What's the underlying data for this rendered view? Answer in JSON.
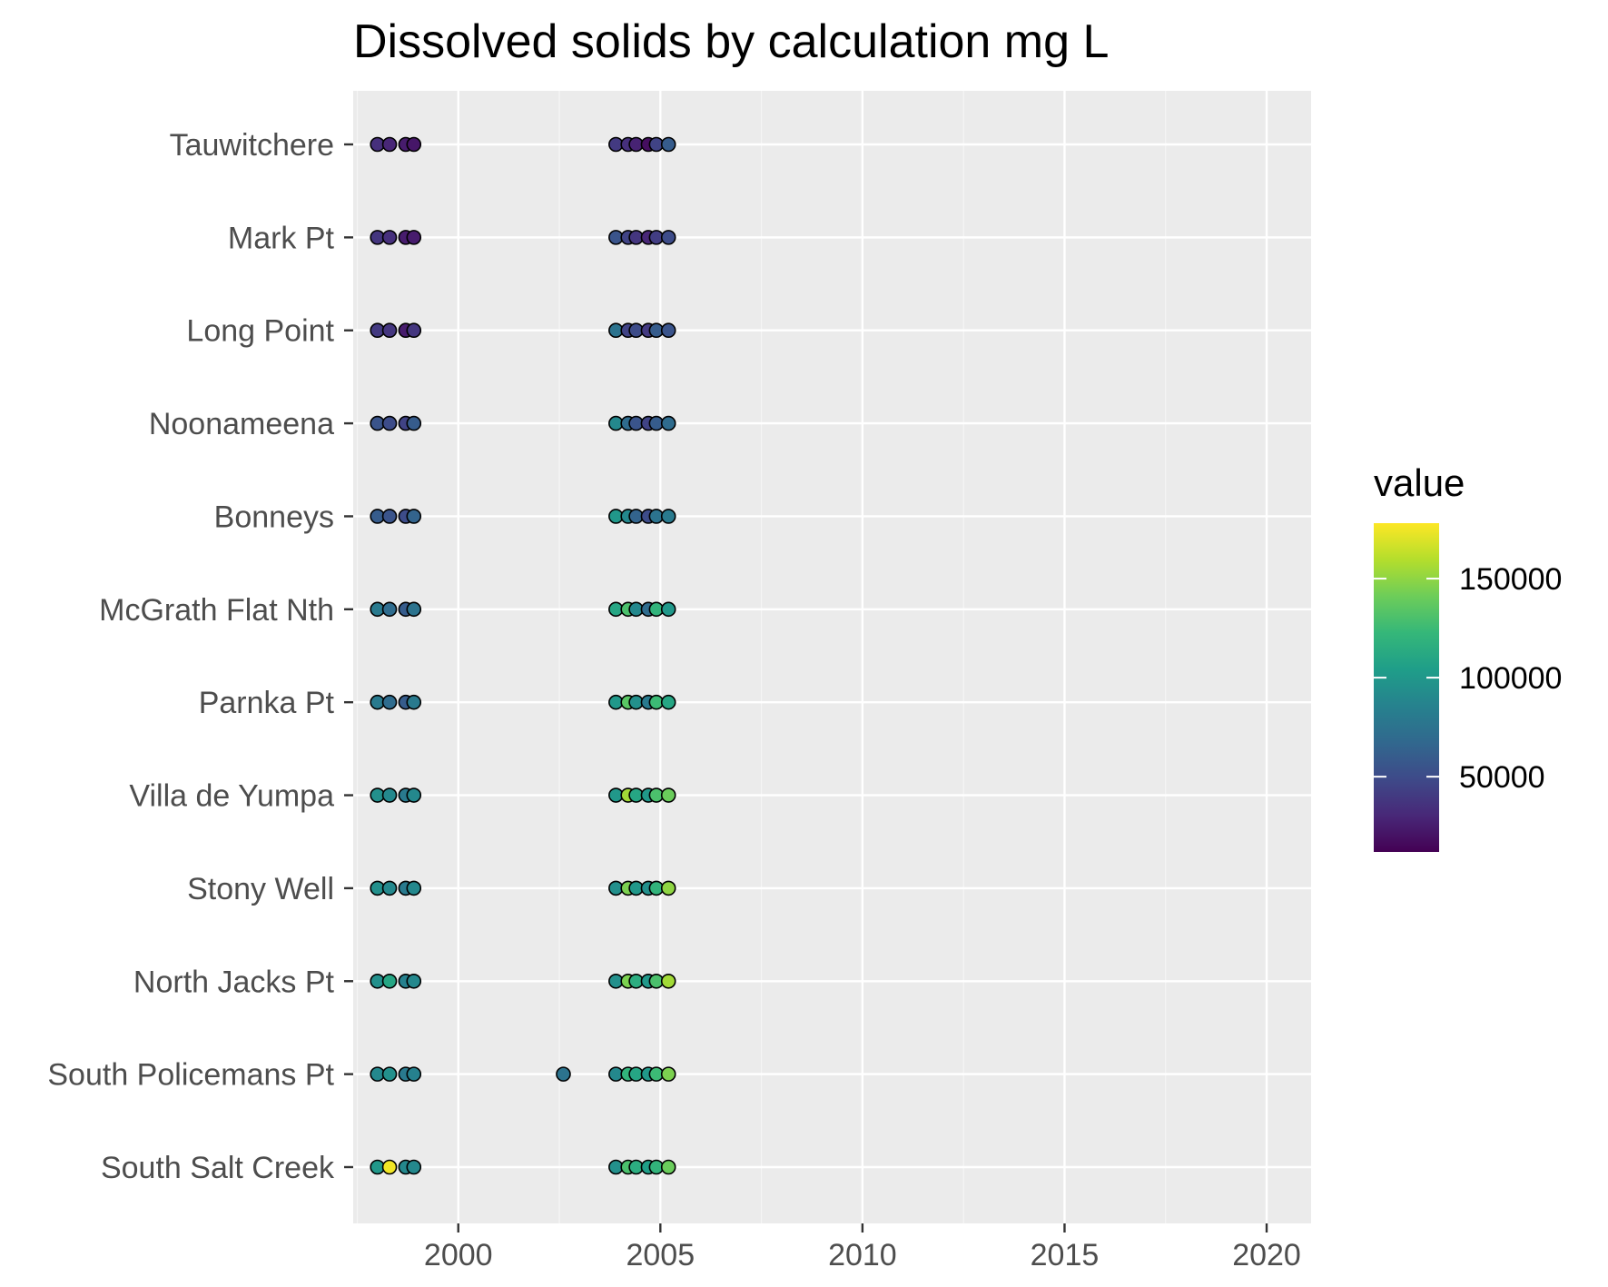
{
  "chart_data": {
    "type": "scatter",
    "title": "Dissolved solids by calculation mg L",
    "xlabel": "",
    "ylabel": "",
    "xlim": [
      1997.4,
      2021.1
    ],
    "x_ticks": [
      2000,
      2005,
      2010,
      2015,
      2020
    ],
    "x_minor": [
      1997.5,
      2002.5,
      2007.5,
      2012.5,
      2017.5
    ],
    "categories": [
      "Tauwitchere",
      "Mark Pt",
      "Long Point",
      "Noonameena",
      "Bonneys",
      "McGrath Flat Nth",
      "Parnka Pt",
      "Villa de Yumpa",
      "Stony Well",
      "North Jacks Pt",
      "South Policemans Pt",
      "South Salt Creek"
    ],
    "grid": true,
    "legend": {
      "title": "value",
      "placement": "right",
      "min": 12000,
      "max": 178000,
      "ticks": [
        50000,
        100000,
        150000
      ],
      "tick_labels": [
        "50000",
        "100000",
        "150000"
      ]
    },
    "colors": {
      "panel_bg": "#ebebeb",
      "grid_major": "#ffffff",
      "grid_minor": "#f5f5f5",
      "point_outline": "#000000",
      "palette": "viridis"
    },
    "series": [
      {
        "site": "Tauwitchere",
        "points": [
          {
            "x": 1998.0,
            "value": 35000
          },
          {
            "x": 1998.3,
            "value": 30000
          },
          {
            "x": 1998.7,
            "value": 25000
          },
          {
            "x": 1998.9,
            "value": 22000
          },
          {
            "x": 2003.9,
            "value": 40000
          },
          {
            "x": 2004.2,
            "value": 35000
          },
          {
            "x": 2004.4,
            "value": 28000
          },
          {
            "x": 2004.7,
            "value": 18000
          },
          {
            "x": 2004.9,
            "value": 45000
          },
          {
            "x": 2005.2,
            "value": 60000
          }
        ]
      },
      {
        "site": "Mark Pt",
        "points": [
          {
            "x": 1998.0,
            "value": 38000
          },
          {
            "x": 1998.3,
            "value": 35000
          },
          {
            "x": 1998.7,
            "value": 25000
          },
          {
            "x": 1998.9,
            "value": 25000
          },
          {
            "x": 2003.9,
            "value": 55000
          },
          {
            "x": 2004.2,
            "value": 45000
          },
          {
            "x": 2004.4,
            "value": 38000
          },
          {
            "x": 2004.7,
            "value": 30000
          },
          {
            "x": 2004.9,
            "value": 42000
          },
          {
            "x": 2005.2,
            "value": 50000
          }
        ]
      },
      {
        "site": "Long Point",
        "points": [
          {
            "x": 1998.0,
            "value": 40000
          },
          {
            "x": 1998.3,
            "value": 38000
          },
          {
            "x": 1998.7,
            "value": 25000
          },
          {
            "x": 1998.9,
            "value": 38000
          },
          {
            "x": 2003.9,
            "value": 75000
          },
          {
            "x": 2004.2,
            "value": 45000
          },
          {
            "x": 2004.4,
            "value": 50000
          },
          {
            "x": 2004.7,
            "value": 40000
          },
          {
            "x": 2004.9,
            "value": 60000
          },
          {
            "x": 2005.2,
            "value": 55000
          }
        ]
      },
      {
        "site": "Noonameena",
        "points": [
          {
            "x": 1998.0,
            "value": 55000
          },
          {
            "x": 1998.3,
            "value": 50000
          },
          {
            "x": 1998.7,
            "value": 45000
          },
          {
            "x": 1998.9,
            "value": 60000
          },
          {
            "x": 2003.9,
            "value": 90000
          },
          {
            "x": 2004.2,
            "value": 70000
          },
          {
            "x": 2004.4,
            "value": 55000
          },
          {
            "x": 2004.7,
            "value": 45000
          },
          {
            "x": 2004.9,
            "value": 60000
          },
          {
            "x": 2005.2,
            "value": 70000
          }
        ]
      },
      {
        "site": "Bonneys",
        "points": [
          {
            "x": 1998.0,
            "value": 60000
          },
          {
            "x": 1998.3,
            "value": 55000
          },
          {
            "x": 1998.7,
            "value": 50000
          },
          {
            "x": 1998.9,
            "value": 65000
          },
          {
            "x": 2003.9,
            "value": 100000
          },
          {
            "x": 2004.2,
            "value": 90000
          },
          {
            "x": 2004.4,
            "value": 65000
          },
          {
            "x": 2004.7,
            "value": 50000
          },
          {
            "x": 2004.9,
            "value": 75000
          },
          {
            "x": 2005.2,
            "value": 80000
          }
        ]
      },
      {
        "site": "McGrath Flat Nth",
        "points": [
          {
            "x": 1998.0,
            "value": 80000
          },
          {
            "x": 1998.3,
            "value": 70000
          },
          {
            "x": 1998.7,
            "value": 60000
          },
          {
            "x": 1998.9,
            "value": 75000
          },
          {
            "x": 2003.9,
            "value": 110000
          },
          {
            "x": 2004.2,
            "value": 130000
          },
          {
            "x": 2004.4,
            "value": 90000
          },
          {
            "x": 2004.7,
            "value": 70000
          },
          {
            "x": 2004.9,
            "value": 120000
          },
          {
            "x": 2005.2,
            "value": 100000
          }
        ]
      },
      {
        "site": "Parnka Pt",
        "points": [
          {
            "x": 1998.0,
            "value": 80000
          },
          {
            "x": 1998.3,
            "value": 70000
          },
          {
            "x": 1998.7,
            "value": 60000
          },
          {
            "x": 1998.9,
            "value": 80000
          },
          {
            "x": 2003.9,
            "value": 100000
          },
          {
            "x": 2004.2,
            "value": 135000
          },
          {
            "x": 2004.4,
            "value": 95000
          },
          {
            "x": 2004.7,
            "value": 80000
          },
          {
            "x": 2004.9,
            "value": 125000
          },
          {
            "x": 2005.2,
            "value": 110000
          }
        ]
      },
      {
        "site": "Villa de Yumpa",
        "points": [
          {
            "x": 1998.0,
            "value": 95000
          },
          {
            "x": 1998.3,
            "value": 90000
          },
          {
            "x": 1998.7,
            "value": 80000
          },
          {
            "x": 1998.9,
            "value": 90000
          },
          {
            "x": 2003.9,
            "value": 100000
          },
          {
            "x": 2004.2,
            "value": 155000
          },
          {
            "x": 2004.4,
            "value": 110000
          },
          {
            "x": 2004.7,
            "value": 100000
          },
          {
            "x": 2004.9,
            "value": 130000
          },
          {
            "x": 2005.2,
            "value": 140000
          }
        ]
      },
      {
        "site": "Stony Well",
        "points": [
          {
            "x": 1998.0,
            "value": 95000
          },
          {
            "x": 1998.3,
            "value": 90000
          },
          {
            "x": 1998.7,
            "value": 80000
          },
          {
            "x": 1998.9,
            "value": 90000
          },
          {
            "x": 2003.9,
            "value": 95000
          },
          {
            "x": 2004.2,
            "value": 145000
          },
          {
            "x": 2004.4,
            "value": 100000
          },
          {
            "x": 2004.7,
            "value": 95000
          },
          {
            "x": 2004.9,
            "value": 120000
          },
          {
            "x": 2005.2,
            "value": 150000
          }
        ]
      },
      {
        "site": "North Jacks Pt",
        "points": [
          {
            "x": 1998.0,
            "value": 95000
          },
          {
            "x": 1998.3,
            "value": 110000
          },
          {
            "x": 1998.7,
            "value": 85000
          },
          {
            "x": 1998.9,
            "value": 90000
          },
          {
            "x": 2003.9,
            "value": 95000
          },
          {
            "x": 2004.2,
            "value": 145000
          },
          {
            "x": 2004.4,
            "value": 115000
          },
          {
            "x": 2004.7,
            "value": 100000
          },
          {
            "x": 2004.9,
            "value": 130000
          },
          {
            "x": 2005.2,
            "value": 155000
          }
        ]
      },
      {
        "site": "South Policemans Pt",
        "points": [
          {
            "x": 1998.0,
            "value": 90000
          },
          {
            "x": 1998.3,
            "value": 95000
          },
          {
            "x": 1998.7,
            "value": 80000
          },
          {
            "x": 1998.9,
            "value": 85000
          },
          {
            "x": 2002.6,
            "value": 75000
          },
          {
            "x": 2003.9,
            "value": 90000
          },
          {
            "x": 2004.2,
            "value": 120000
          },
          {
            "x": 2004.4,
            "value": 110000
          },
          {
            "x": 2004.7,
            "value": 100000
          },
          {
            "x": 2004.9,
            "value": 125000
          },
          {
            "x": 2005.2,
            "value": 145000
          }
        ]
      },
      {
        "site": "South Salt Creek",
        "points": [
          {
            "x": 1998.0,
            "value": 100000
          },
          {
            "x": 1998.3,
            "value": 175000
          },
          {
            "x": 1998.7,
            "value": 90000
          },
          {
            "x": 1998.9,
            "value": 90000
          },
          {
            "x": 2003.9,
            "value": 95000
          },
          {
            "x": 2004.2,
            "value": 130000
          },
          {
            "x": 2004.4,
            "value": 115000
          },
          {
            "x": 2004.7,
            "value": 105000
          },
          {
            "x": 2004.9,
            "value": 120000
          },
          {
            "x": 2005.2,
            "value": 140000
          }
        ]
      }
    ]
  }
}
